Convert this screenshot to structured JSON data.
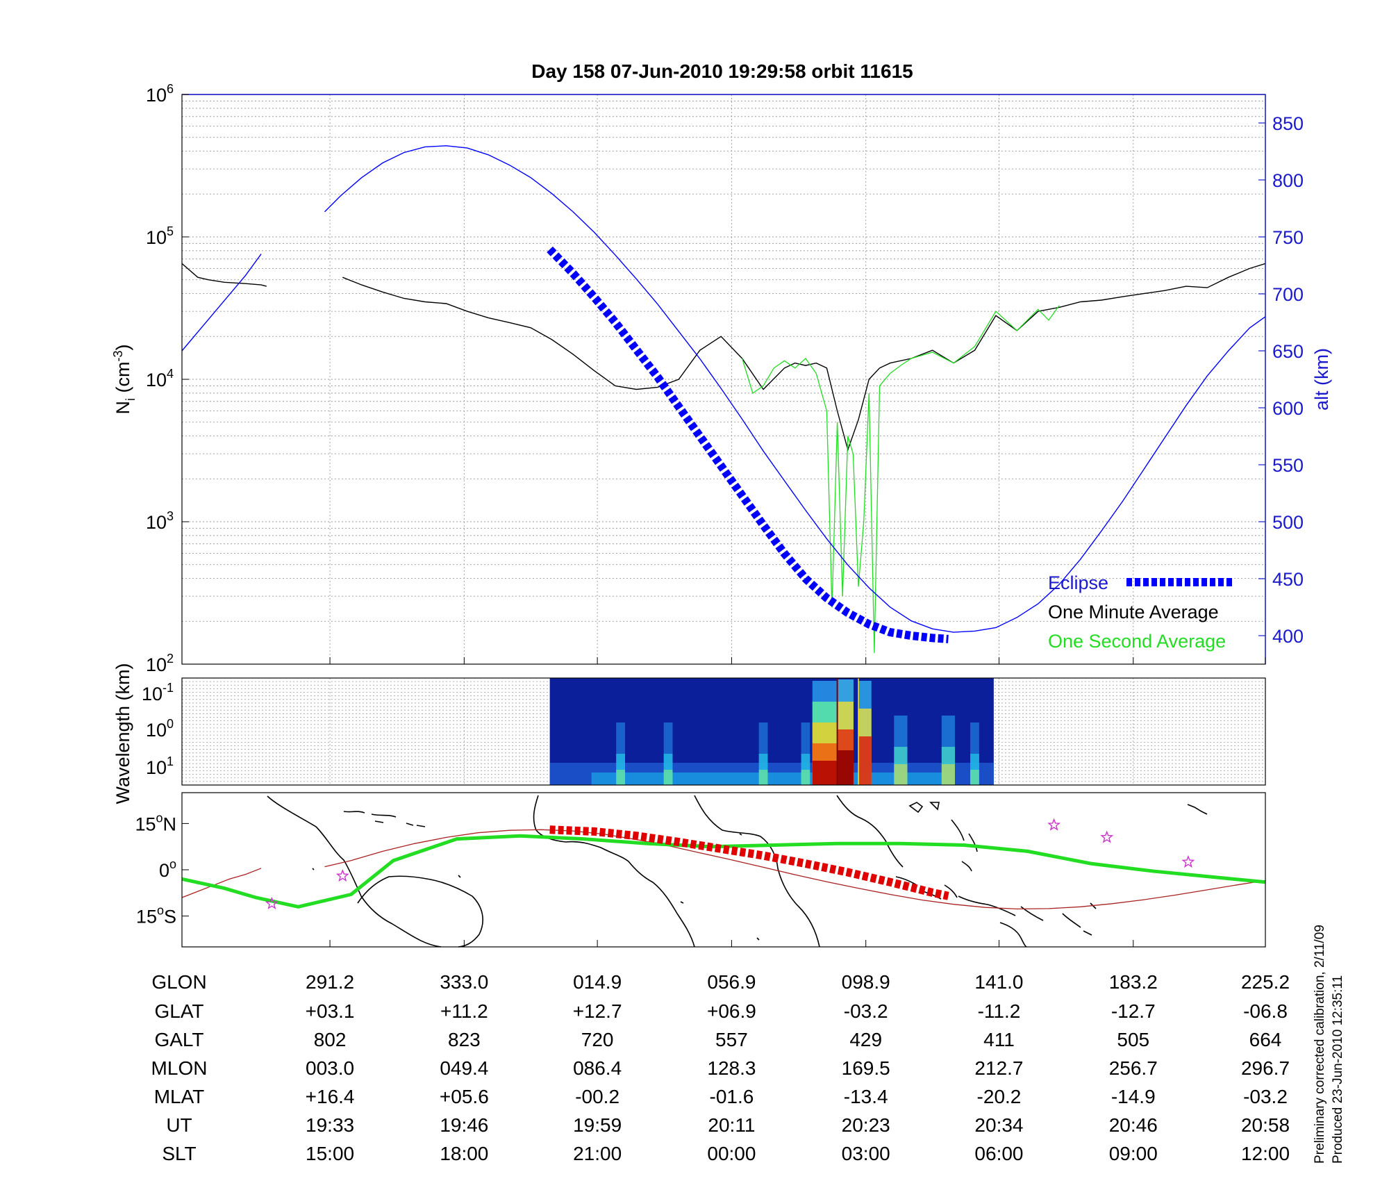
{
  "title": "Day 158  07-Jun-2010 19:29:58   orbit 11615",
  "colors": {
    "blue": "#0000ff",
    "darkblue": "#1a1acc",
    "green": "#22dd22",
    "red": "#e00000",
    "darkred": "#aa2222",
    "magenta": "#cc33cc"
  },
  "chart_data": [
    {
      "type": "line",
      "panel": "density",
      "ylabel_left": {
        "base": "N",
        "sub": "i",
        "unit_open": " (cm",
        "unit_sup": "-3",
        "unit_close": ")"
      },
      "ylabel_right": "alt (km)",
      "yscale_left": "log",
      "ylim_left": [
        100,
        1000000
      ],
      "yticks_left": [
        {
          "base": "10",
          "exp": "2"
        },
        {
          "base": "10",
          "exp": "3"
        },
        {
          "base": "10",
          "exp": "4"
        },
        {
          "base": "10",
          "exp": "5"
        },
        {
          "base": "10",
          "exp": "6"
        }
      ],
      "ylim_right": [
        375,
        875
      ],
      "yticks_right": [
        "400",
        "450",
        "500",
        "550",
        "600",
        "650",
        "700",
        "750",
        "800",
        "850"
      ],
      "x_ut_minutes_range": [
        1159.0,
        1261.5
      ],
      "legend_position": "lower-right",
      "series": [
        {
          "name": "One Minute Average",
          "color": "black",
          "x": [
            1159.0,
            1160.5,
            1161.5,
            1163.0,
            1165.0,
            1166.5,
            1167.0,
            1167.2,
            1174.2,
            1176,
            1178,
            1180,
            1182,
            1184,
            1186,
            1188,
            1190,
            1192,
            1194,
            1196,
            1198,
            1200,
            1202,
            1204,
            1206,
            1208,
            1210,
            1212,
            1214,
            1216,
            1217,
            1218,
            1219,
            1220,
            1221,
            1222,
            1223,
            1224,
            1225,
            1226,
            1228,
            1230,
            1232,
            1234,
            1236,
            1238,
            1240,
            1242,
            1244,
            1246,
            1248,
            1250,
            1252,
            1254,
            1256,
            1258,
            1260,
            1261.5
          ],
          "y": [
            65000,
            52000,
            50000,
            48000,
            47000,
            46000,
            45000,
            null,
            52000,
            46000,
            41000,
            37000,
            35000,
            34000,
            30000,
            27000,
            25000,
            23000,
            19000,
            15000,
            11500,
            9000,
            8500,
            8800,
            10000,
            16000,
            20000,
            14000,
            8500,
            12000,
            13000,
            12500,
            13000,
            12000,
            6000,
            3200,
            5200,
            10000,
            12000,
            13000,
            14000,
            16000,
            13000,
            16000,
            28000,
            22000,
            30000,
            32000,
            35000,
            36000,
            38000,
            40000,
            42000,
            45000,
            44000,
            52000,
            60000,
            65000
          ]
        },
        {
          "name": "One Second Average",
          "color": "green",
          "x": [
            1212,
            1213,
            1214,
            1215,
            1216,
            1217,
            1218,
            1219,
            1220,
            1220.5,
            1221,
            1221.5,
            1222,
            1222.5,
            1223,
            1223.5,
            1224,
            1224.5,
            1225,
            1226,
            1227,
            1228,
            1230,
            1232,
            1234,
            1236,
            1238,
            1240,
            1241,
            1242
          ],
          "y": [
            14000,
            8000,
            9000,
            12000,
            13500,
            12000,
            14000,
            11000,
            6000,
            250,
            5000,
            300,
            4000,
            3000,
            350,
            1000,
            8000,
            120,
            9000,
            11000,
            12500,
            14000,
            15500,
            13000,
            17000,
            30000,
            22000,
            31000,
            26000,
            33000
          ]
        },
        {
          "name": "alt",
          "color": "blue",
          "axis": "right",
          "x": [
            1159.0,
            1161,
            1163,
            1165,
            1166.5,
            null,
            1172.5,
            1174,
            1176,
            1178,
            1180,
            1182,
            1184,
            1186,
            1188,
            1190,
            1192,
            1194,
            1196,
            1198,
            1200,
            1202,
            1204,
            1206,
            1208,
            1210,
            1212,
            1214,
            1216,
            1218,
            1220,
            1222,
            1224,
            1226,
            1228,
            1230,
            1232,
            1234,
            1236,
            1238,
            1240,
            1242,
            1244,
            1246,
            1248,
            1250,
            1252,
            1254,
            1256,
            1258,
            1260,
            1261.5
          ],
          "y": [
            650,
            672,
            694,
            716,
            735,
            null,
            772,
            786,
            802,
            815,
            824,
            829,
            830,
            828,
            822,
            813,
            802,
            788,
            772,
            754,
            734,
            713,
            691,
            667,
            643,
            617,
            590,
            562,
            536,
            510,
            485,
            462,
            442,
            425,
            413,
            406,
            403,
            404,
            407,
            416,
            428,
            445,
            467,
            492,
            518,
            546,
            574,
            602,
            628,
            650,
            670,
            680
          ]
        },
        {
          "name": "Eclipse",
          "color": "blue",
          "axis": "right",
          "style": "thick-dashed",
          "x": [
            1193.8,
            1196,
            1198,
            1200,
            1202,
            1204,
            1206,
            1208,
            1210,
            1212,
            1214,
            1216,
            1218,
            1220,
            1222,
            1224,
            1226,
            1228,
            1230,
            1231.5
          ],
          "y": [
            739,
            718,
            697,
            675,
            651,
            627,
            601,
            575,
            549,
            523,
            497,
            472,
            450,
            433,
            420,
            410,
            403,
            400,
            398,
            397
          ]
        }
      ]
    },
    {
      "type": "heatmap",
      "panel": "spectrogram",
      "ylabel": "Wavelength (km)",
      "yticks": [
        {
          "base": "10",
          "exp": "-1"
        },
        {
          "base": "10",
          "exp": "0"
        },
        {
          "base": "10",
          "exp": "1"
        }
      ],
      "x_ut_minutes_data_range": [
        1193.8,
        1235.8
      ],
      "colormap": "jet",
      "note": ""
    },
    {
      "type": "line",
      "panel": "ground-track",
      "yticks": [
        {
          "num": "15",
          "deg": "o",
          "hemi": "N"
        },
        {
          "num": "0",
          "deg": "o",
          "hemi": ""
        },
        {
          "num": "15",
          "deg": "o",
          "hemi": "S"
        }
      ],
      "ylim": [
        -25,
        25
      ],
      "series": [
        {
          "name": "geographic track",
          "color": "darkred",
          "x": [
            1159.0,
            1160.5,
            1162,
            1163.5,
            1165,
            1166.5,
            null,
            1172.5,
            1175,
            1178,
            1181,
            1184,
            1187,
            1190,
            1193,
            1196,
            1199,
            1202,
            1205,
            1208,
            1211,
            1214,
            1217,
            1220,
            1223,
            1226,
            1229,
            1232,
            1235,
            1238,
            1241,
            1244,
            1247,
            1250,
            1253,
            1256,
            1259,
            1261.5
          ],
          "y": [
            -9,
            -7,
            -5,
            -3,
            -1.5,
            0.5,
            null,
            1,
            3,
            6,
            8.5,
            10.5,
            12,
            12.8,
            13,
            12.6,
            11.5,
            9.8,
            7.8,
            5.5,
            3.2,
            0.8,
            -1.6,
            -3.9,
            -6,
            -8,
            -9.8,
            -11.2,
            -12.2,
            -12.7,
            -12.6,
            -12,
            -11,
            -9.7,
            -8.2,
            -6.5,
            -4.8,
            -3.5
          ]
        },
        {
          "name": "magnetic equator",
          "color": "green",
          "x": [
            1159.0,
            1163,
            1166,
            1170,
            1175,
            1179,
            1185,
            1191,
            1197,
            1203,
            1209,
            1215,
            1221,
            1227,
            1233,
            1239,
            1245,
            1251,
            1257,
            1261.5
          ],
          "y": [
            -3,
            -6,
            -9,
            -12,
            -8,
            3,
            10,
            11,
            10,
            8.5,
            7.5,
            8,
            8.5,
            8.5,
            8,
            6,
            2,
            -0.5,
            -2.5,
            -4
          ]
        },
        {
          "name": "eclipse segment",
          "color": "red",
          "style": "thick-dashed",
          "x": [
            1193.8,
            1198,
            1202,
            1206,
            1210,
            1214,
            1218,
            1222,
            1226,
            1230,
            1231.5
          ],
          "y": [
            13,
            12.4,
            11,
            9,
            6.8,
            4.6,
            2,
            -0.8,
            -4,
            -7.4,
            -8.5
          ]
        },
        {
          "name": "stars",
          "color": "magenta",
          "style": "star-markers",
          "x": [
            1167.5,
            1174.2,
            1241.5,
            1246.5,
            1254.2
          ],
          "y": [
            -11,
            -2,
            14.5,
            10.5,
            2.5
          ]
        }
      ]
    }
  ],
  "legend": {
    "eclipse": "Eclipse",
    "one_minute": "One Minute Average",
    "one_second": "One Second Average"
  },
  "table": {
    "row_labels": [
      "GLON",
      "GLAT",
      "GALT",
      "MLON",
      "MLAT",
      "UT",
      "SLT"
    ],
    "columns": [
      [
        "291.2",
        "+03.1",
        "802",
        "003.0",
        "+16.4",
        "19:33",
        "15:00"
      ],
      [
        "333.0",
        "+11.2",
        "823",
        "049.4",
        "+05.6",
        "19:46",
        "18:00"
      ],
      [
        "014.9",
        "+12.7",
        "720",
        "086.4",
        "-00.2",
        "19:59",
        "21:00"
      ],
      [
        "056.9",
        "+06.9",
        "557",
        "128.3",
        "-01.6",
        "20:11",
        "00:00"
      ],
      [
        "098.9",
        "-03.2",
        "429",
        "169.5",
        "-13.4",
        "20:23",
        "03:00"
      ],
      [
        "141.0",
        "-11.2",
        "411",
        "212.7",
        "-20.2",
        "20:34",
        "06:00"
      ],
      [
        "183.2",
        "-12.7",
        "505",
        "256.7",
        "-14.9",
        "20:46",
        "09:00"
      ],
      [
        "225.2",
        "-06.8",
        "664",
        "296.7",
        "-03.2",
        "20:58",
        "12:00"
      ]
    ]
  },
  "notes": {
    "line1": "Preliminary corrected calibration, 2/11/09",
    "line2": "Produced 23-Jun-2010 12:35:11"
  }
}
